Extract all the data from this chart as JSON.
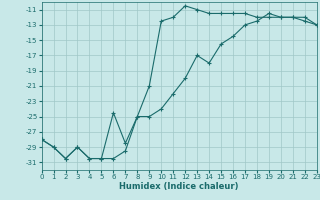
{
  "xlabel": "Humidex (Indice chaleur)",
  "bg_color": "#c8e8e8",
  "line_color": "#1a6b6b",
  "marker": "+",
  "line1_x": [
    0,
    1,
    2,
    3,
    4,
    5,
    6,
    7,
    8,
    9,
    10,
    11,
    12,
    13,
    14,
    15,
    16,
    17,
    18,
    19,
    20,
    21,
    22,
    23
  ],
  "line1_y": [
    -28,
    -29,
    -30.5,
    -29,
    -30.5,
    -30.5,
    -30.5,
    -29.5,
    -25,
    -25,
    -24,
    -22,
    -20,
    -17,
    -18,
    -15.5,
    -14.5,
    -13,
    -12.5,
    -11.5,
    -12,
    -12,
    -12.5,
    -13
  ],
  "line2_x": [
    0,
    1,
    2,
    3,
    4,
    5,
    6,
    7,
    8,
    9,
    10,
    11,
    12,
    13,
    14,
    15,
    16,
    17,
    18,
    19,
    20,
    21,
    22,
    23
  ],
  "line2_y": [
    -28,
    -29,
    -30.5,
    -29,
    -30.5,
    -30.5,
    -24.5,
    -28.5,
    -25,
    -21,
    -12.5,
    -12,
    -10.5,
    -11,
    -11.5,
    -11.5,
    -11.5,
    -11.5,
    -12,
    -12,
    -12,
    -12,
    -12,
    -13
  ],
  "xlim": [
    0,
    23
  ],
  "ylim": [
    -32,
    -10
  ],
  "yticks": [
    -11,
    -13,
    -15,
    -17,
    -19,
    -21,
    -23,
    -25,
    -27,
    -29,
    -31
  ],
  "xticks": [
    0,
    1,
    2,
    3,
    4,
    5,
    6,
    7,
    8,
    9,
    10,
    11,
    12,
    13,
    14,
    15,
    16,
    17,
    18,
    19,
    20,
    21,
    22,
    23
  ],
  "grid_color": "#a0c8c8",
  "label_fontsize": 6,
  "tick_fontsize": 5
}
